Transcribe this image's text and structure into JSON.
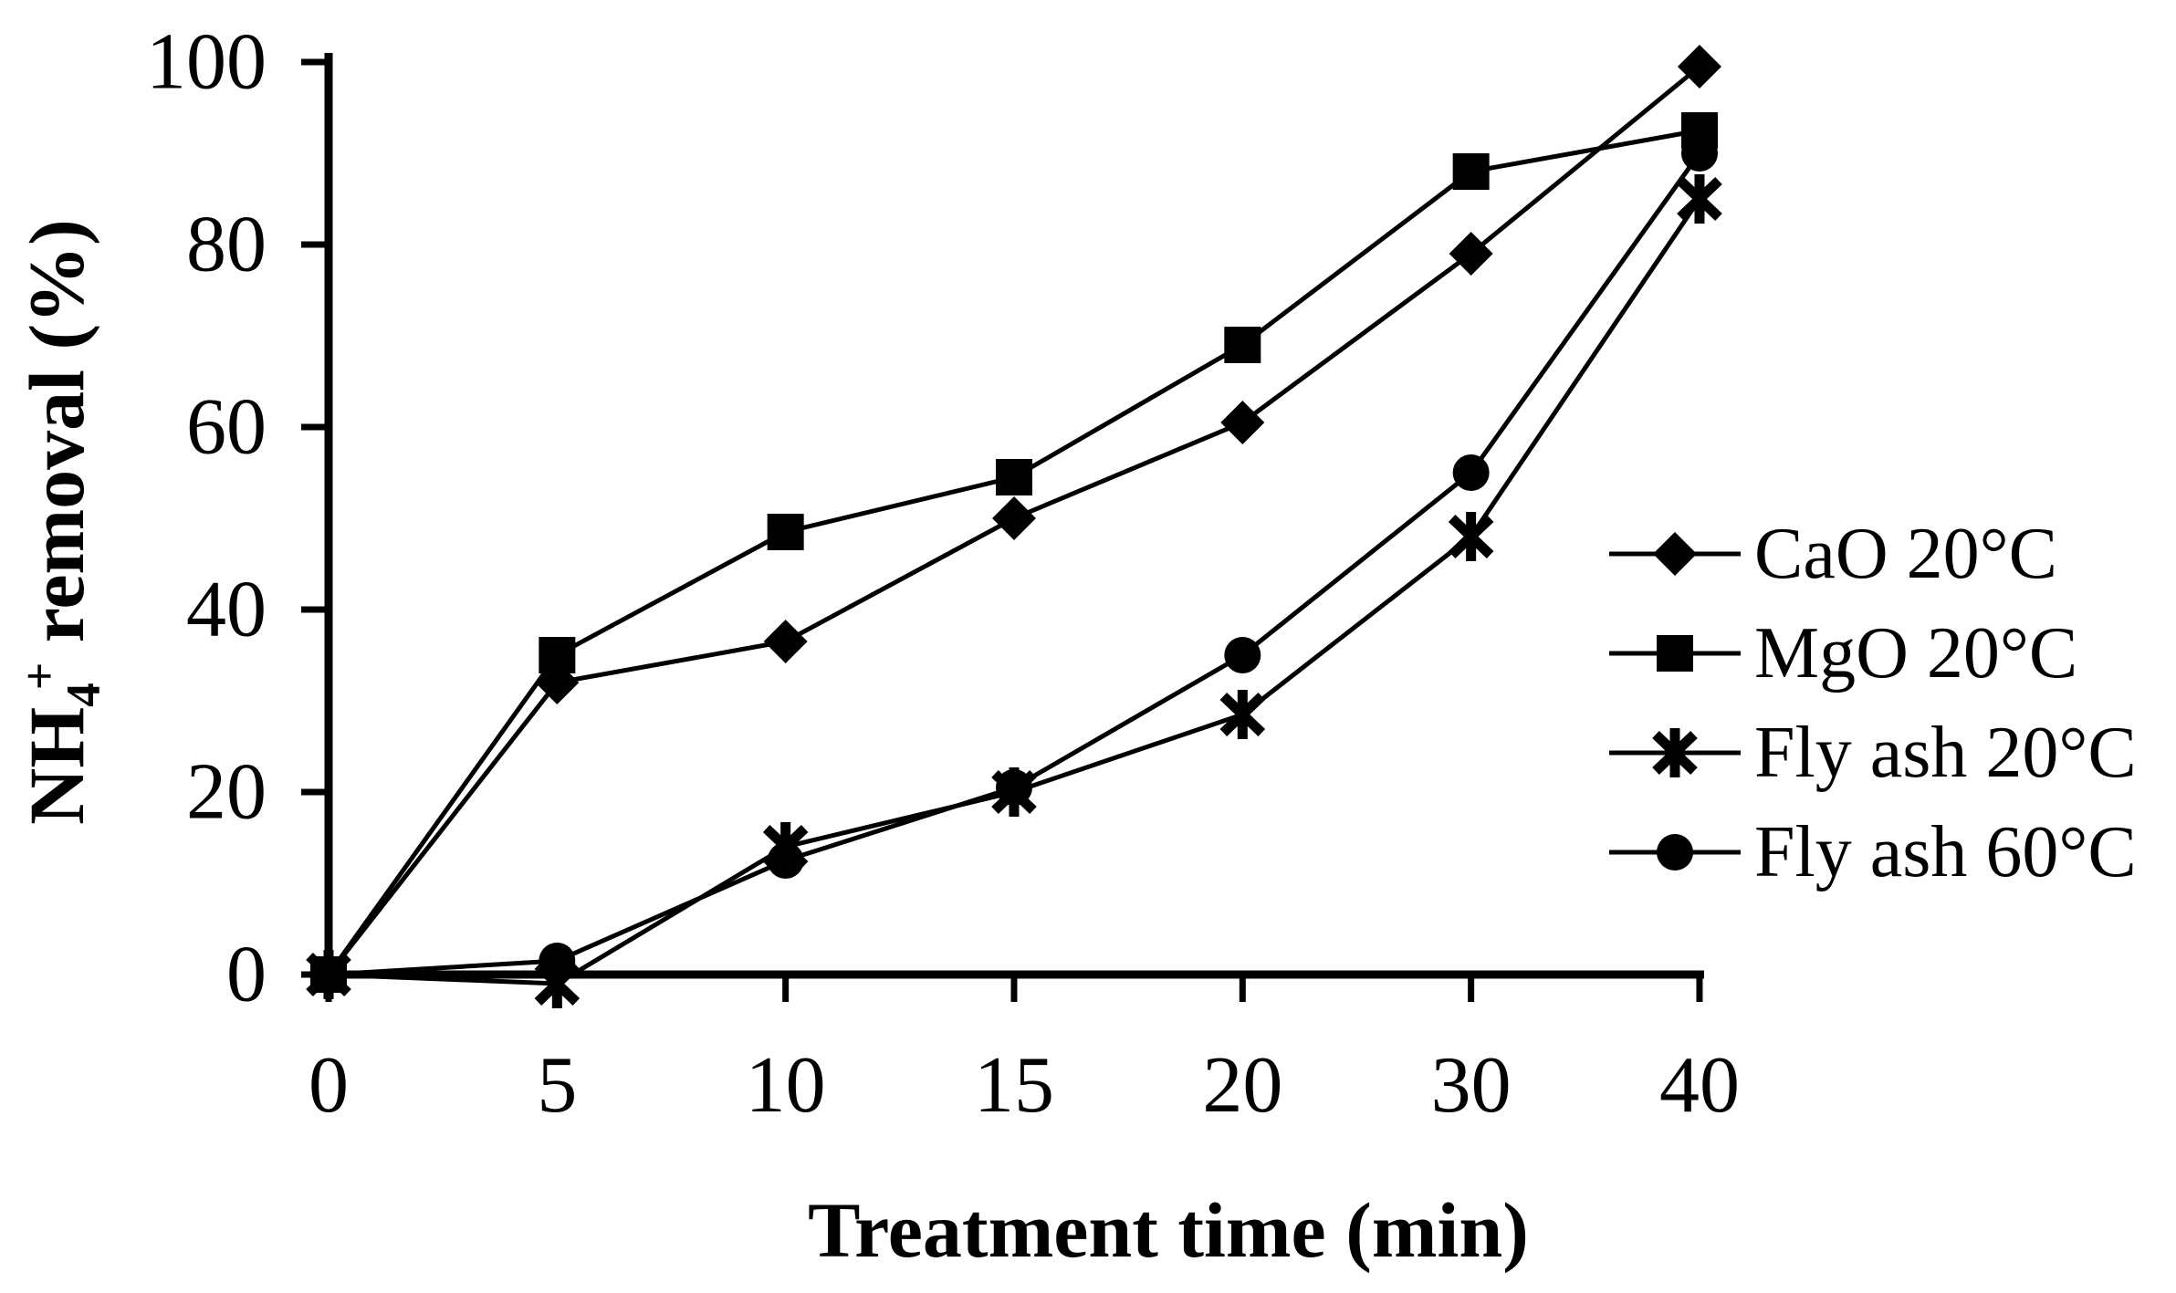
{
  "figure": {
    "background": "#ffffff",
    "ink": "#000000"
  },
  "chart_data": {
    "type": "line",
    "title": "",
    "xlabel": "Treatment time (min)",
    "ylabel": {
      "pre": "NH",
      "sub": "4",
      "sup": "+",
      "post": " removal (%)",
      "plain": "NH4+ removal (%)"
    },
    "x": [
      0,
      5,
      10,
      15,
      20,
      30,
      40
    ],
    "x_tick_labels": [
      "0",
      "5",
      "10",
      "15",
      "20",
      "30",
      "40"
    ],
    "x_spacing": "categorical-equal",
    "y_ticks": [
      0,
      20,
      40,
      60,
      80,
      100
    ],
    "y_tick_labels": [
      "0",
      "20",
      "40",
      "60",
      "80",
      "100"
    ],
    "ylim": [
      0,
      100
    ],
    "grid": false,
    "legend_position": "right-middle",
    "series": [
      {
        "name": "CaO 20°C",
        "marker": "diamond",
        "color": "#000000",
        "values": [
          0,
          32,
          36.5,
          50,
          60.5,
          79,
          99.5
        ]
      },
      {
        "name": "MgO 20°C",
        "marker": "square",
        "color": "#000000",
        "values": [
          0,
          35,
          48.5,
          54.5,
          69,
          88,
          92.5
        ]
      },
      {
        "name": "Fly ash 20°C",
        "marker": "asterisk",
        "color": "#000000",
        "values": [
          0,
          -1,
          14,
          20,
          28.5,
          48,
          85
        ]
      },
      {
        "name": "Fly ash 60°C",
        "marker": "circle",
        "color": "#000000",
        "values": [
          0,
          1.5,
          12.5,
          20.5,
          35,
          55,
          90
        ]
      }
    ]
  }
}
